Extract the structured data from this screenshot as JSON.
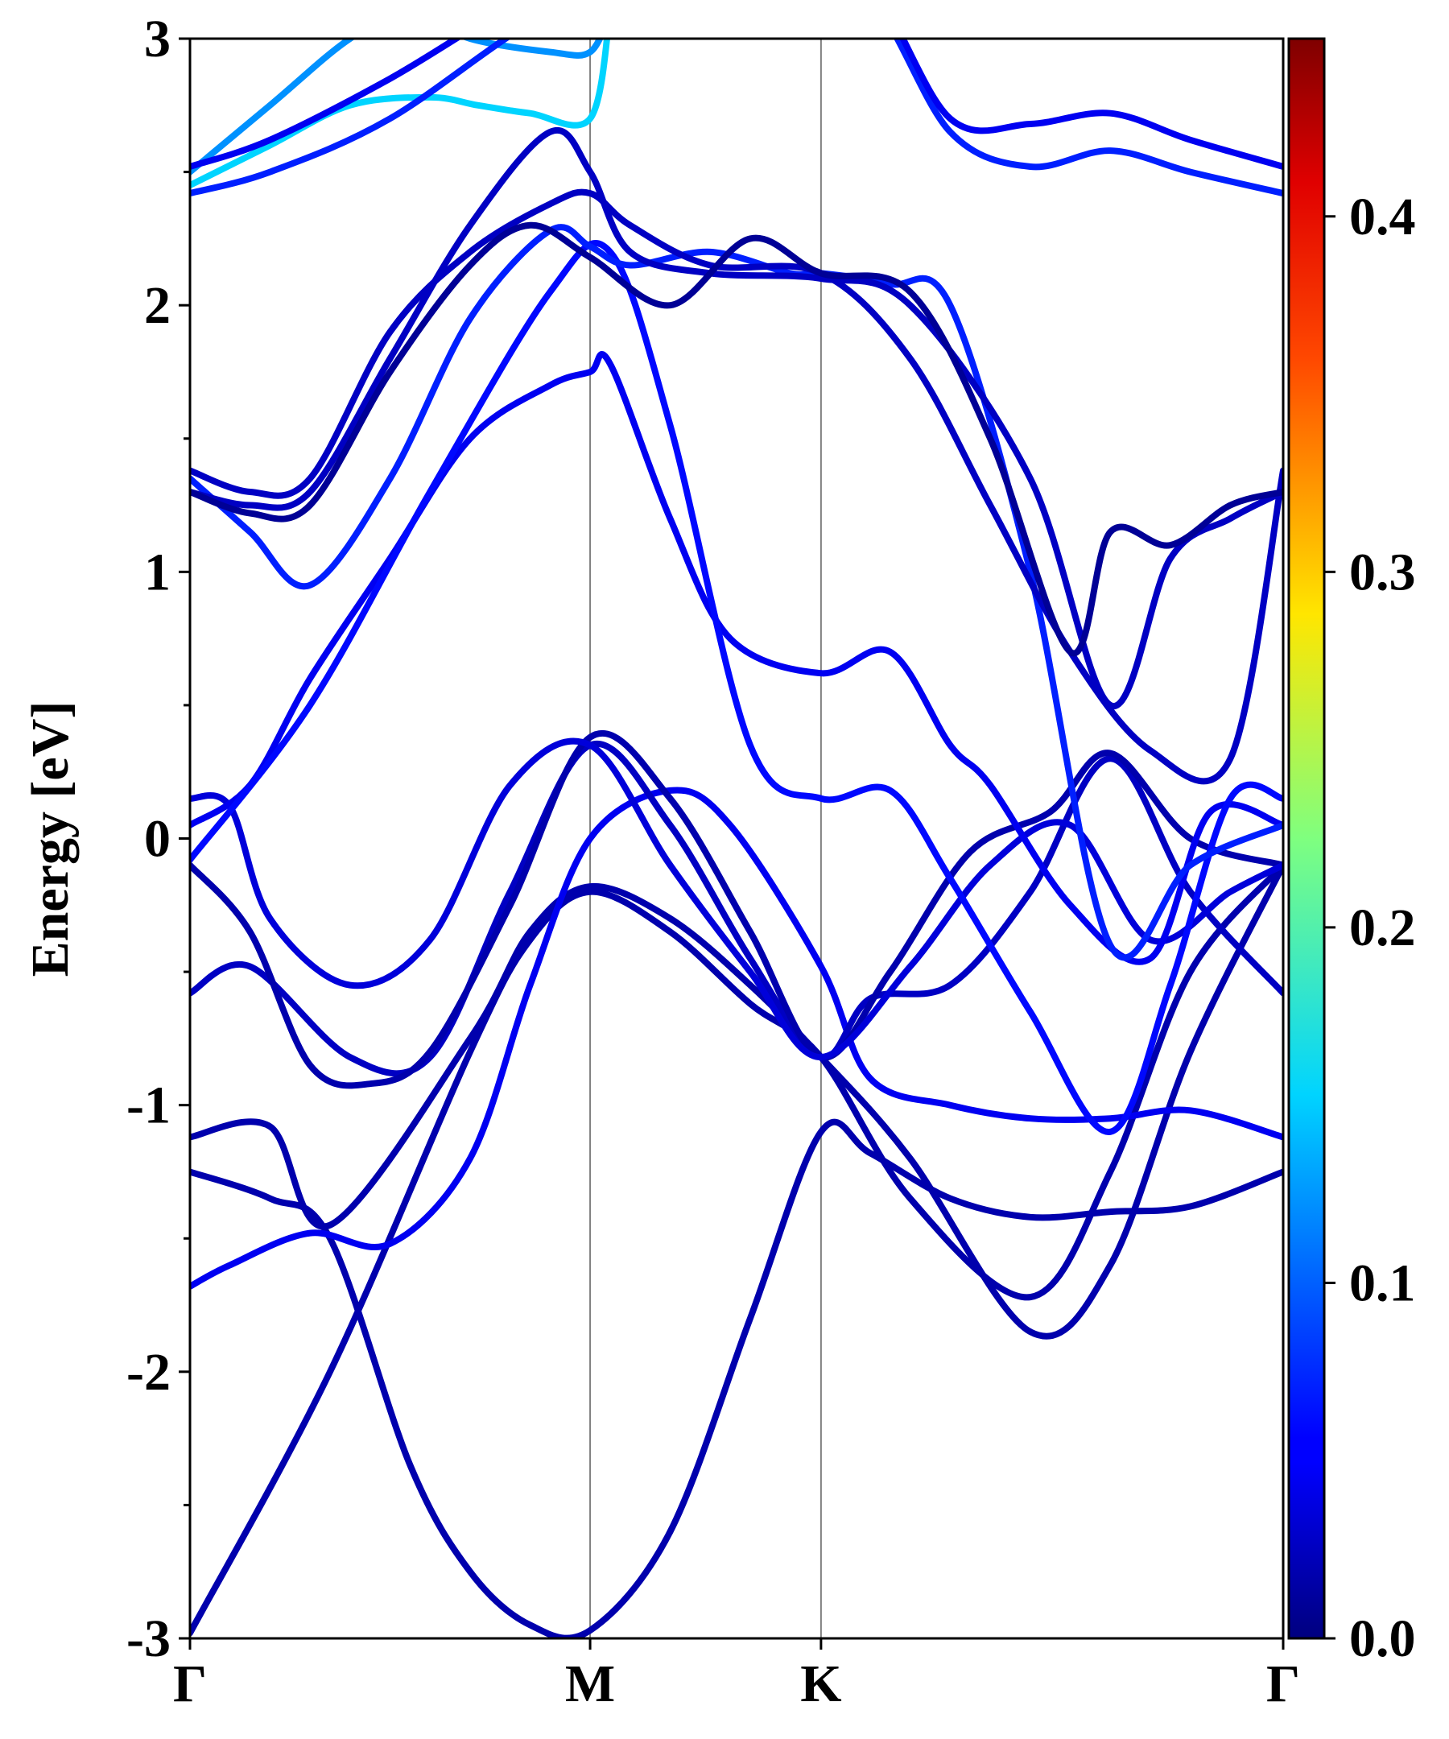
{
  "chart_data": {
    "type": "line",
    "title": "",
    "ylabel": "Energy [eV]",
    "xlabel": "",
    "ylim": [
      -3,
      3
    ],
    "yticks": [
      "-3",
      "-2",
      "-1",
      "0",
      "1",
      "2",
      "3"
    ],
    "kpath": [
      {
        "label": "Γ",
        "k": 0.0
      },
      {
        "label": "M",
        "k": 1.0
      },
      {
        "label": "K",
        "k": 1.577
      },
      {
        "label": "Γ",
        "k": 2.732
      }
    ],
    "colorbar": {
      "range": [
        0.0,
        0.45
      ],
      "ticks": [
        "0.0",
        "0.1",
        "0.2",
        "0.3",
        "0.4"
      ],
      "colormap": "jet"
    },
    "colors": {
      "axis": "#000000",
      "kline": "#808080"
    },
    "series": [
      {
        "w": 0.02,
        "k": [
          0,
          0.35,
          0.7,
          0.85,
          1.0,
          1.2,
          1.4,
          1.577,
          1.8,
          2.1,
          2.3,
          2.5,
          2.732
        ],
        "e": [
          -2.98,
          -2.0,
          -0.8,
          -0.38,
          -0.2,
          -0.35,
          -0.62,
          -0.82,
          -1.35,
          -1.72,
          -1.25,
          -0.5,
          -0.1
        ]
      },
      {
        "w": 0.02,
        "k": [
          0,
          0.2,
          0.35,
          0.7,
          0.85,
          1.0,
          1.2,
          1.4,
          1.577,
          1.8,
          2.1,
          2.3,
          2.5,
          2.732
        ],
        "e": [
          -1.12,
          -1.08,
          -1.45,
          -0.75,
          -0.35,
          -0.18,
          -0.3,
          -0.55,
          -0.82,
          -1.2,
          -1.85,
          -1.6,
          -0.8,
          -0.1
        ]
      },
      {
        "w": 0.02,
        "k": [
          0,
          0.2,
          0.35,
          0.55,
          0.7,
          0.85,
          1.0,
          1.2,
          1.4,
          1.577,
          1.7,
          1.9,
          2.1,
          2.3,
          2.5,
          2.732
        ],
        "e": [
          -1.25,
          -1.35,
          -1.5,
          -2.35,
          -2.75,
          -2.95,
          -2.97,
          -2.6,
          -1.8,
          -1.1,
          -1.18,
          -1.35,
          -1.42,
          -1.4,
          -1.38,
          -1.25
        ]
      },
      {
        "w": 0.05,
        "k": [
          0,
          0.1,
          0.3,
          0.5,
          0.7,
          0.85,
          1.0,
          1.2,
          1.35,
          1.577,
          1.7,
          1.9,
          2.1,
          2.3,
          2.5,
          2.732
        ],
        "e": [
          -1.68,
          -1.6,
          -1.48,
          -1.52,
          -1.2,
          -0.55,
          0.0,
          0.18,
          0.05,
          -0.48,
          -0.9,
          -1.0,
          -1.05,
          -1.05,
          -1.02,
          -1.12
        ]
      },
      {
        "w": 0.03,
        "k": [
          0,
          0.15,
          0.4,
          0.6,
          0.8,
          1.0,
          1.2,
          1.4,
          1.577,
          1.7,
          1.9,
          2.1,
          2.3,
          2.5,
          2.732
        ],
        "e": [
          -0.58,
          -0.48,
          -0.82,
          -0.82,
          -0.2,
          0.35,
          0.05,
          -0.45,
          -0.82,
          -0.6,
          -0.55,
          -0.2,
          0.3,
          -0.2,
          -0.58
        ]
      },
      {
        "w": 0.02,
        "k": [
          0,
          0.15,
          0.3,
          0.45,
          0.6,
          0.8,
          1.0,
          1.2,
          1.4,
          1.577,
          1.75,
          1.95,
          2.15,
          2.3,
          2.5,
          2.732
        ],
        "e": [
          -0.1,
          -0.35,
          -0.85,
          -0.92,
          -0.8,
          -0.25,
          0.38,
          0.15,
          -0.35,
          -0.82,
          -0.5,
          -0.05,
          0.1,
          0.32,
          0.0,
          -0.1
        ]
      },
      {
        "w": 0.04,
        "k": [
          0,
          0.1,
          0.2,
          0.4,
          0.6,
          0.8,
          1.0,
          1.2,
          1.4,
          1.577,
          1.8,
          2.0,
          2.2,
          2.4,
          2.6,
          2.732
        ],
        "e": [
          0.15,
          0.12,
          -0.3,
          -0.55,
          -0.38,
          0.2,
          0.35,
          -0.1,
          -0.5,
          -0.82,
          -0.48,
          -0.1,
          0.05,
          -0.38,
          -0.2,
          -0.1
        ]
      },
      {
        "w": 0.05,
        "k": [
          0,
          0.15,
          0.3,
          0.5,
          0.7,
          0.9,
          1.0,
          1.05,
          1.2,
          1.35,
          1.577,
          1.75,
          1.9,
          2.0,
          2.2,
          2.4,
          2.55,
          2.732
        ],
        "e": [
          0.05,
          0.2,
          0.6,
          1.05,
          1.5,
          1.7,
          1.75,
          1.78,
          1.2,
          0.75,
          0.62,
          0.7,
          0.35,
          0.2,
          -0.25,
          -0.45,
          0.1,
          0.05
        ]
      },
      {
        "w": 0.06,
        "k": [
          0,
          0.3,
          0.6,
          0.9,
          1.05,
          1.2,
          1.4,
          1.577,
          1.75,
          1.9,
          2.1,
          2.3,
          2.45,
          2.6,
          2.732
        ],
        "e": [
          -0.08,
          0.5,
          1.3,
          2.05,
          2.2,
          1.55,
          0.35,
          0.15,
          0.18,
          -0.15,
          -0.65,
          -1.1,
          -0.55,
          0.15,
          0.15
        ]
      },
      {
        "w": 0.07,
        "k": [
          0,
          0.15,
          0.3,
          0.5,
          0.7,
          0.9,
          1.0,
          1.1,
          1.3,
          1.5,
          1.577,
          1.75,
          1.9,
          2.1,
          2.3,
          2.5,
          2.732
        ],
        "e": [
          1.35,
          1.15,
          0.95,
          1.35,
          1.95,
          2.28,
          2.22,
          2.15,
          2.2,
          2.12,
          2.12,
          2.08,
          2.0,
          1.0,
          -0.4,
          -0.1,
          0.05
        ]
      },
      {
        "w": 0.03,
        "k": [
          0,
          0.15,
          0.3,
          0.5,
          0.7,
          0.9,
          1.0,
          1.1,
          1.3,
          1.577,
          1.8,
          2.0,
          2.2,
          2.4,
          2.6,
          2.732
        ],
        "e": [
          1.38,
          1.3,
          1.35,
          1.9,
          2.2,
          2.38,
          2.42,
          2.3,
          2.15,
          2.12,
          1.8,
          1.25,
          0.7,
          0.33,
          0.3,
          1.38
        ]
      },
      {
        "w": 0.03,
        "k": [
          0,
          0.15,
          0.3,
          0.5,
          0.7,
          0.9,
          1.0,
          1.1,
          1.3,
          1.577,
          1.8,
          2.1,
          2.3,
          2.45,
          2.6,
          2.732
        ],
        "e": [
          1.3,
          1.25,
          1.3,
          1.8,
          2.3,
          2.65,
          2.5,
          2.2,
          2.12,
          2.1,
          2.0,
          1.35,
          0.5,
          1.05,
          1.2,
          1.3
        ]
      },
      {
        "w": 0.01,
        "k": [
          0,
          0.15,
          0.3,
          0.5,
          0.7,
          0.85,
          1.0,
          1.2,
          1.4,
          1.577,
          1.8,
          2.0,
          2.2,
          2.3,
          2.45,
          2.6,
          2.732
        ],
        "e": [
          1.3,
          1.22,
          1.25,
          1.75,
          2.15,
          2.3,
          2.18,
          2.0,
          2.25,
          2.12,
          2.05,
          1.5,
          0.7,
          1.15,
          1.1,
          1.25,
          1.3
        ]
      },
      {
        "w": 0.15,
        "k": [
          0,
          0.2,
          0.4,
          0.6,
          0.72,
          0.85,
          1.0,
          1.05
        ],
        "e": [
          2.45,
          2.6,
          2.75,
          2.78,
          2.75,
          2.72,
          2.7,
          3.1
        ]
      },
      {
        "w": 0.12,
        "k": [
          0,
          0.2,
          0.4,
          0.55,
          0.7,
          0.9,
          1.0,
          1.05
        ],
        "e": [
          2.5,
          2.75,
          3.0,
          3.1,
          3.0,
          2.95,
          2.95,
          3.1
        ]
      },
      {
        "w": 0.07,
        "k": [
          0,
          0.2,
          0.5,
          0.9,
          1.2,
          1.5,
          1.7,
          1.9,
          2.1,
          2.3,
          2.5,
          2.732
        ],
        "e": [
          2.42,
          2.5,
          2.7,
          3.1,
          3.2,
          3.2,
          3.15,
          2.65,
          2.52,
          2.58,
          2.5,
          2.42
        ]
      },
      {
        "w": 0.05,
        "k": [
          0,
          0.2,
          0.5,
          0.9,
          1.2,
          1.5,
          1.7,
          1.9,
          2.1,
          2.3,
          2.5,
          2.732
        ],
        "e": [
          2.52,
          2.62,
          2.85,
          3.2,
          3.3,
          3.3,
          3.2,
          2.7,
          2.68,
          2.72,
          2.62,
          2.52
        ]
      }
    ]
  }
}
